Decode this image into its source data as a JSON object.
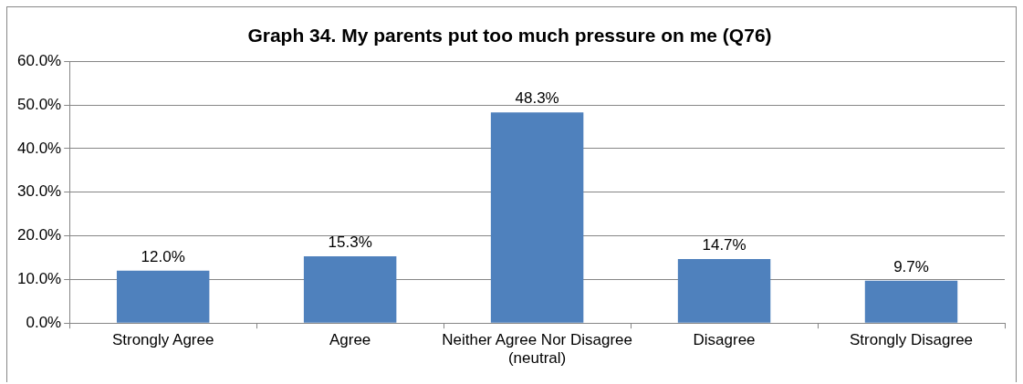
{
  "chart_data": {
    "type": "bar",
    "title": "Graph 34. My parents put too much pressure on me (Q76)",
    "categories": [
      "Strongly Agree",
      "Agree",
      "Neither Agree Nor Disagree (neutral)",
      "Disagree",
      "Strongly Disagree"
    ],
    "values": [
      12.0,
      15.3,
      48.3,
      14.7,
      9.7
    ],
    "value_labels": [
      "12.0%",
      "15.3%",
      "48.3%",
      "14.7%",
      "9.7%"
    ],
    "color": "#4f81bd",
    "ylim": [
      0,
      60
    ],
    "yticks": [
      {
        "value": 0,
        "label": "0.0%"
      },
      {
        "value": 10,
        "label": "10.0%"
      },
      {
        "value": 20,
        "label": "20.0%"
      },
      {
        "value": 30,
        "label": "30.0%"
      },
      {
        "value": 40,
        "label": "40.0%"
      },
      {
        "value": 50,
        "label": "50.0%"
      },
      {
        "value": 60,
        "label": "60.0%"
      }
    ],
    "grid": "y",
    "legend": false
  }
}
